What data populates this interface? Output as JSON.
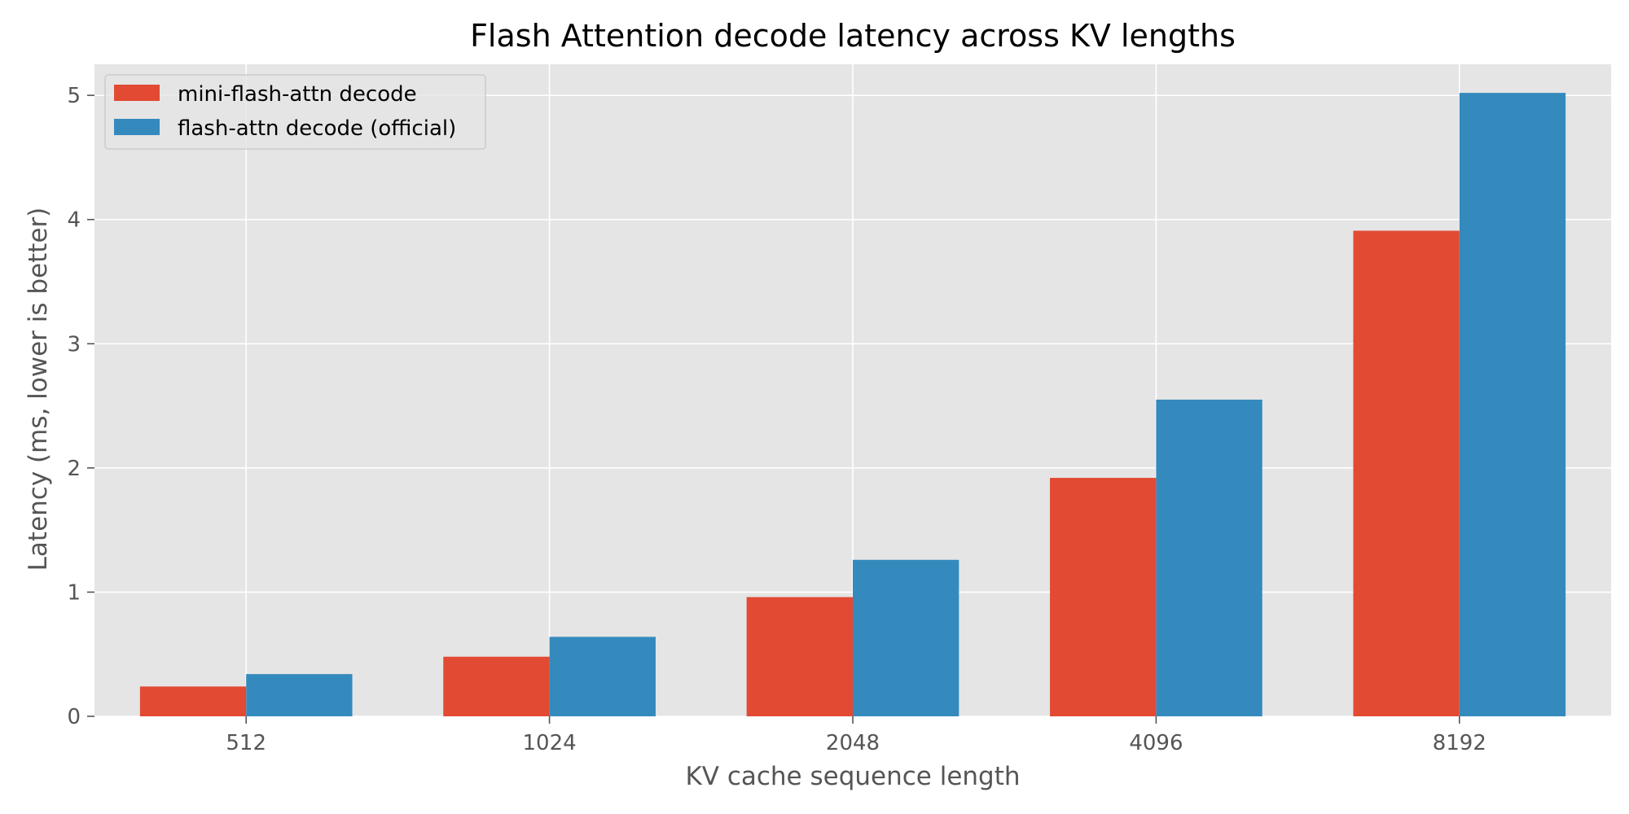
{
  "chart_data": {
    "type": "bar",
    "title": "Flash Attention decode latency across KV lengths",
    "xlabel": "KV cache sequence length",
    "ylabel": "Latency (ms, lower is better)",
    "categories": [
      "512",
      "1024",
      "2048",
      "4096",
      "8192"
    ],
    "series": [
      {
        "name": "mini-flash-attn decode",
        "color": "#e24a33",
        "values": [
          0.24,
          0.48,
          0.96,
          1.92,
          3.91
        ]
      },
      {
        "name": "flash-attn decode (official)",
        "color": "#348abd",
        "values": [
          0.34,
          0.64,
          1.26,
          2.55,
          5.02
        ]
      }
    ],
    "ylim": [
      0,
      5.25
    ],
    "yticks": [
      "0",
      "1",
      "2",
      "3",
      "4",
      "5"
    ],
    "grid": true,
    "legend_position": "top-left",
    "background_color": "#e5e5e5",
    "grid_color": "#ffffff"
  }
}
